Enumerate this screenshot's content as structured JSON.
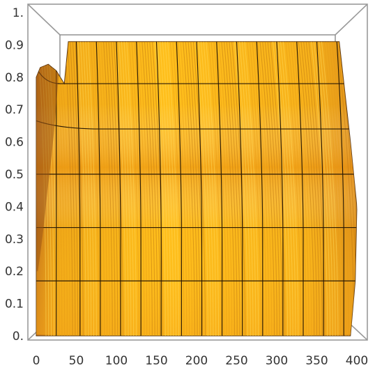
{
  "chart_data": {
    "type": "area",
    "title": "",
    "xlabel": "",
    "ylabel": "",
    "xlim": [
      0,
      400
    ],
    "ylim": [
      0,
      1
    ],
    "x_ticks": [
      "0",
      "50",
      "100",
      "150",
      "200",
      "250",
      "300",
      "350",
      "400"
    ],
    "y_ticks": [
      "0.",
      "0.1",
      "0.2",
      "0.3",
      "0.4",
      "0.5",
      "0.6",
      "0.7",
      "0.8",
      "0.9",
      "1."
    ],
    "surface": {
      "description_colors": {
        "light": "#ffc51a",
        "mid": "#f3a418",
        "dark": "#c8761a",
        "shadow": "#8a4c12",
        "mesh": "#2a1a05"
      },
      "top_boundary": {
        "x": [
          0,
          5,
          15,
          25,
          35,
          40,
          400
        ],
        "y": [
          0.8,
          0.83,
          0.84,
          0.82,
          0.78,
          0.91,
          0.91
        ]
      },
      "right_edge": {
        "x": [
          378,
          392,
          400,
          398,
          392
        ],
        "y": [
          0.91,
          0.6,
          0.4,
          0.17,
          0.0
        ]
      },
      "horizontal_mesh_levels": [
        0.17,
        0.335,
        0.5,
        0.665,
        0.78
      ],
      "vertical_mesh_x": [
        25,
        50,
        75,
        100,
        125,
        150,
        175,
        200,
        225,
        250,
        275,
        300,
        325,
        350,
        375
      ]
    }
  }
}
